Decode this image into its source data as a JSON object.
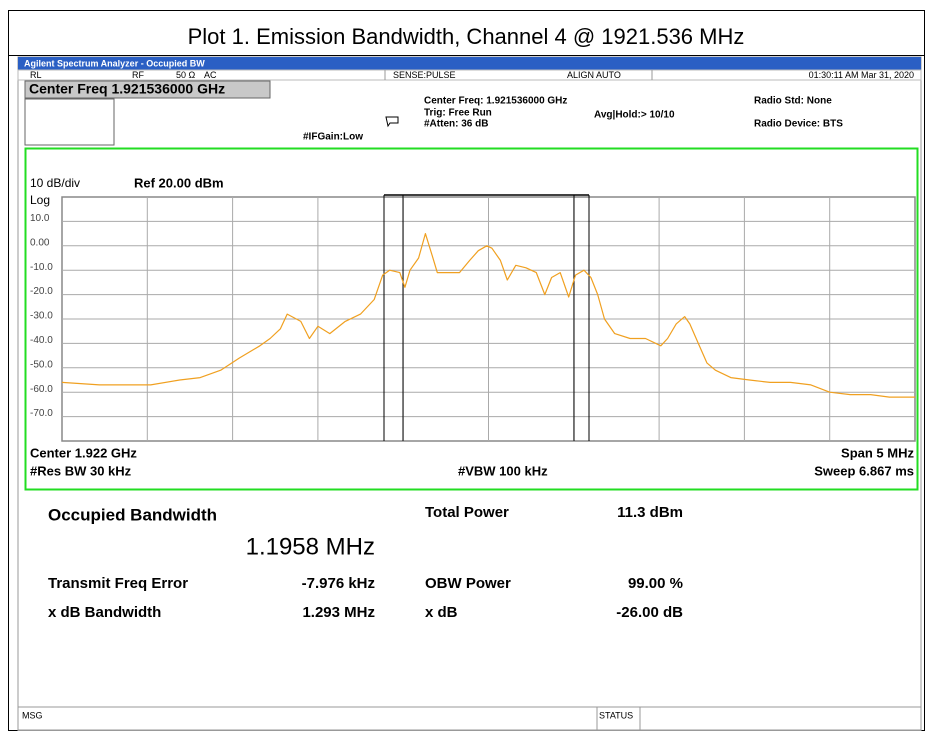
{
  "plot_title": "Plot 1. Emission Bandwidth, Channel 4 @ 1921.536 MHz",
  "header": {
    "app_title": "Agilent Spectrum Analyzer - Occupied BW",
    "status": [
      "RL",
      "RF",
      "50 Ω",
      "AC",
      "SENSE:PULSE",
      "ALIGN AUTO",
      "01:30:11 AM Mar 31, 2020"
    ],
    "center_freq_button": "Center Freq 1.921536000 GHz",
    "center_freq_info": "Center Freq: 1.921536000 GHz",
    "trig": "Trig: Free Run",
    "atten": "#Atten: 36 dB",
    "avg_hold": "Avg|Hold:> 10/10",
    "if_gain": "#IFGain:Low",
    "radio_std": "Radio Std: None",
    "radio_device": "Radio Device: BTS"
  },
  "chart_data": {
    "type": "line",
    "scale_label": "10 dB/div",
    "ref_label": "Ref 20.00 dBm",
    "log_label": "Log",
    "ylim": [
      -80,
      20
    ],
    "yticks": [
      {
        "value": 10,
        "label": "10.0"
      },
      {
        "value": 0,
        "label": "0.00"
      },
      {
        "value": -10,
        "label": "-10.0"
      },
      {
        "value": -20,
        "label": "-20.0"
      },
      {
        "value": -30,
        "label": "-30.0"
      },
      {
        "value": -40,
        "label": "-40.0"
      },
      {
        "value": -50,
        "label": "-50.0"
      },
      {
        "value": -60,
        "label": "-60.0"
      },
      {
        "value": -70,
        "label": "-70.0"
      }
    ],
    "xlim": [
      1919.5,
      1924.5
    ],
    "grid": true,
    "x": [
      1919.5,
      1919.72,
      1920.02,
      1920.19,
      1920.31,
      1920.43,
      1920.54,
      1920.66,
      1920.72,
      1920.78,
      1920.82,
      1920.9,
      1920.95,
      1921.0,
      1921.07,
      1921.16,
      1921.25,
      1921.33,
      1921.38,
      1921.42,
      1921.48,
      1921.51,
      1921.54,
      1921.59,
      1921.63,
      1921.67,
      1921.7,
      1921.77,
      1921.83,
      1921.89,
      1921.94,
      1921.99,
      1922.02,
      1922.07,
      1922.11,
      1922.16,
      1922.22,
      1922.28,
      1922.33,
      1922.37,
      1922.42,
      1922.47,
      1922.51,
      1922.56,
      1922.6,
      1922.64,
      1922.68,
      1922.74,
      1922.83,
      1922.92,
      1923.01,
      1923.05,
      1923.1,
      1923.15,
      1923.18,
      1923.23,
      1923.28,
      1923.33,
      1923.42,
      1923.53,
      1923.65,
      1923.77,
      1923.89,
      1924.0,
      1924.12,
      1924.24,
      1924.35,
      1924.5
    ],
    "series": [
      {
        "color": "#f0a020",
        "values": [
          -56,
          -57,
          -57,
          -55,
          -54,
          -51,
          -46,
          -41,
          -38,
          -34,
          -28,
          -31,
          -38,
          -33,
          -36,
          -31,
          -28,
          -22,
          -12,
          -10,
          -11,
          -17,
          -10,
          -5,
          5,
          -4,
          -11,
          -11,
          -11,
          -6,
          -2,
          0,
          -1,
          -6,
          -14,
          -8,
          -9,
          -11,
          -20,
          -13,
          -11,
          -21,
          -12,
          -10,
          -13,
          -20,
          -30,
          -36,
          -38,
          -38,
          -41,
          -38,
          -32,
          -29,
          -32,
          -40,
          -48,
          -51,
          -54,
          -55,
          -56,
          -56,
          -57,
          -60,
          -61,
          -61,
          -62,
          -62
        ]
      }
    ],
    "center_label": "Center  1.922 GHz",
    "res_bw_label": "#Res BW  30 kHz",
    "vbw_label": "#VBW  100 kHz",
    "span_label": "Span 5 MHz",
    "sweep_label": "Sweep  6.867 ms"
  },
  "measurements": {
    "occupied_bandwidth_label": "Occupied Bandwidth",
    "occupied_bandwidth_value": "1.1958 MHz",
    "total_power_label": "Total Power",
    "total_power_value": "11.3 dBm",
    "freq_error_label": "Transmit Freq Error",
    "freq_error_value": "-7.976 kHz",
    "obw_power_label": "OBW Power",
    "obw_power_value": "99.00 %",
    "xdb_bw_label": "x dB Bandwidth",
    "xdb_bw_value": "1.293 MHz",
    "xdb_label": "x dB",
    "xdb_value": "-26.00 dB"
  },
  "footer": {
    "msg": "MSG",
    "status": "STATUS"
  }
}
